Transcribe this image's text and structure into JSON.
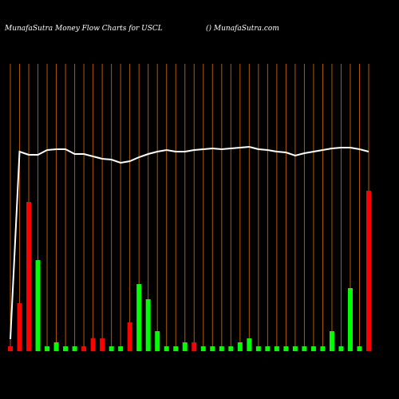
{
  "chart_data": {
    "type": "bar",
    "title": "MunafaSutra  Money Flow  Charts for USCL",
    "subtitle": "() MunafaSutra.com",
    "categories": [
      null,
      null,
      null,
      null,
      null,
      null,
      null,
      null,
      null,
      null,
      null,
      null,
      null,
      null,
      null,
      null,
      null,
      null,
      null,
      null,
      null,
      null,
      null,
      null,
      null,
      null,
      null,
      null,
      null,
      null,
      null,
      null,
      null,
      null,
      null,
      null,
      null,
      null,
      null,
      null
    ],
    "values": [
      6,
      60,
      187,
      114,
      6,
      11,
      6,
      6,
      6,
      16,
      16,
      6,
      6,
      36,
      84,
      65,
      25,
      6,
      6,
      11,
      11,
      6,
      6,
      6,
      6,
      11,
      16,
      6,
      6,
      6,
      6,
      6,
      6,
      6,
      6,
      25,
      6,
      79,
      6,
      201
    ],
    "colors": [
      "#ff0000",
      "#ff0000",
      "#ff0000",
      "#00ff00",
      "#00ff00",
      "#00ff00",
      "#00ff00",
      "#00ff00",
      "#ff0000",
      "#ff0000",
      "#ff0000",
      "#00ff00",
      "#00ff00",
      "#ff0000",
      "#00ff00",
      "#00ff00",
      "#00ff00",
      "#00ff00",
      "#00ff00",
      "#00ff00",
      "#ff0000",
      "#00ff00",
      "#00ff00",
      "#00ff00",
      "#00ff00",
      "#00ff00",
      "#00ff00",
      "#00ff00",
      "#00ff00",
      "#00ff00",
      "#00ff00",
      "#00ff00",
      "#00ff00",
      "#00ff00",
      "#00ff00",
      "#00ff00",
      "#00ff00",
      "#00ff00",
      "#00ff00",
      "#ff0000"
    ],
    "line": {
      "color": "#ffffff",
      "values": [
        15,
        250,
        246,
        246,
        252,
        253,
        253,
        247,
        247,
        244,
        241,
        240,
        236,
        238,
        243,
        247,
        250,
        252,
        250,
        250,
        252,
        253,
        254,
        253,
        254,
        255,
        256,
        253,
        252,
        250,
        249,
        245,
        248,
        250,
        252,
        254,
        255,
        255,
        253,
        250
      ]
    },
    "grid_color": "#b35900"
  }
}
